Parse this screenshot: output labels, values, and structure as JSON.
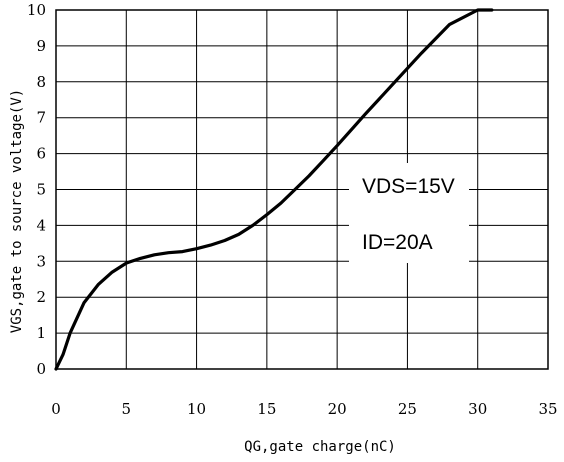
{
  "chart_data": {
    "type": "line",
    "xlabel": "QG,gate charge(nC)",
    "ylabel": "VGS,gate to source voltage(V)",
    "xlim": [
      0,
      35
    ],
    "ylim": [
      0,
      10
    ],
    "x_ticks": [
      "0",
      "5",
      "10",
      "15",
      "20",
      "25",
      "30",
      "35"
    ],
    "y_ticks": [
      "0",
      "1",
      "2",
      "3",
      "4",
      "5",
      "6",
      "7",
      "8",
      "9",
      "10"
    ],
    "grid": true,
    "annotations": [
      "VDS=15V",
      "ID=20A"
    ],
    "series": [
      {
        "x": [
          0,
          0.5,
          1,
          2,
          3,
          4,
          5,
          6,
          7,
          8,
          9,
          10,
          11,
          12,
          13,
          14,
          15,
          16,
          17,
          18,
          19,
          20,
          22,
          24,
          26,
          28,
          30,
          31
        ],
        "y": [
          0,
          0.4,
          1.0,
          1.85,
          2.35,
          2.7,
          2.95,
          3.08,
          3.18,
          3.24,
          3.27,
          3.35,
          3.45,
          3.58,
          3.75,
          4.0,
          4.3,
          4.62,
          5.0,
          5.38,
          5.8,
          6.22,
          7.1,
          7.95,
          8.8,
          9.6,
          10.0,
          10.0
        ]
      }
    ]
  }
}
